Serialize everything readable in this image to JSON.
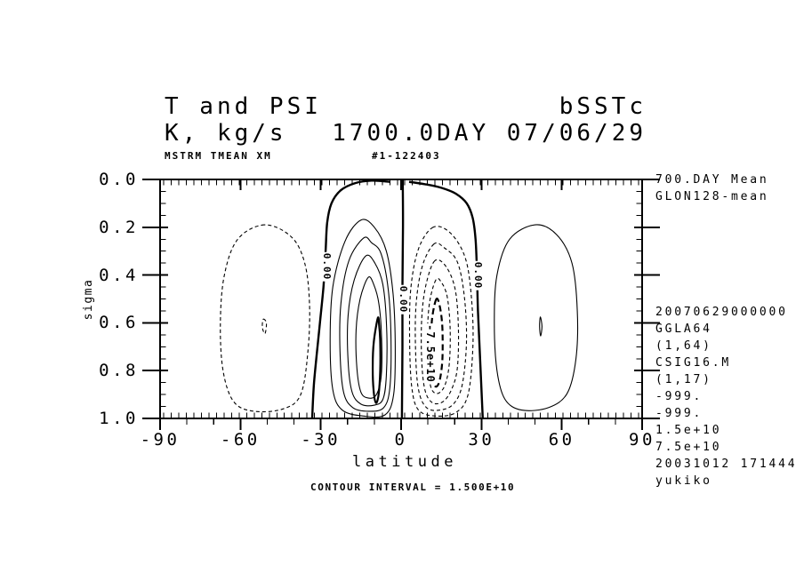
{
  "page": {
    "bg": "#ffffff",
    "fg": "#000000"
  },
  "header": {
    "title_left": "T and PSI",
    "title_right": "bSSTc",
    "subtitle_left": "K, kg/s",
    "subtitle_right": "1700.0DAY 07/06/29",
    "meta_left": "MSTRM TMEAN XM",
    "meta_center": "#1-122403"
  },
  "right_panel": {
    "top_lines": [
      "700.DAY Mean",
      "GLON128-mean"
    ],
    "bottom_lines": [
      "20070629000000",
      "GGLA64",
      "(1,64)",
      "CSIG16.M",
      "(1,17)",
      "-999.",
      "-999.",
      "1.5e+10",
      "7.5e+10",
      "20031012 171444",
      "yukiko"
    ]
  },
  "footnote": "CONTOUR INTERVAL = 1.500E+10",
  "chart_data": {
    "type": "contour",
    "title": "T and PSI  (mass streamfunction, MSTRM TMEAN XM)",
    "xlabel": "latitude",
    "ylabel": "sigma",
    "xlim": [
      -90,
      90
    ],
    "ylim_top_to_bottom": [
      0.0,
      1.0
    ],
    "x_ticks_major": [
      -90,
      -60,
      -30,
      0,
      30,
      60,
      90
    ],
    "x_tick_labels": [
      "-90",
      "-60",
      "-30",
      "0",
      "30",
      "60",
      "90"
    ],
    "x_minor_tick_step": 10,
    "x_grid_tick_count": 64,
    "y_ticks_major": [
      0.0,
      0.2,
      0.4,
      0.6,
      0.8,
      1.0
    ],
    "y_tick_labels": [
      "0.0",
      "0.2",
      "0.4",
      "0.6",
      "0.8",
      "1.0"
    ],
    "y_minor_tick_step": 0.05,
    "grid": false,
    "contour_interval": 15000000000.0,
    "units": "kg/s",
    "labels": [
      {
        "text": "0.00",
        "lat": -27.8,
        "sigma": 0.365,
        "big": false
      },
      {
        "text": "0.00",
        "lat": 0.5,
        "sigma": 0.5,
        "big": false
      },
      {
        "text": "0.00",
        "lat": 28.4,
        "sigma": 0.4,
        "big": false
      },
      {
        "text": "-7.5e+10",
        "lat": 10.9,
        "sigma": 0.73,
        "big": true
      }
    ],
    "contours": [
      {
        "level": 0,
        "style": "solid",
        "bold": true,
        "closed": false,
        "pts": [
          [
            -33.2,
            1.0
          ],
          [
            -32.5,
            0.85
          ],
          [
            -30.5,
            0.62
          ],
          [
            -29.0,
            0.45
          ],
          [
            -28.2,
            0.3
          ],
          [
            -27.6,
            0.18
          ],
          [
            -26.0,
            0.1
          ],
          [
            -22.5,
            0.045
          ],
          [
            -17.0,
            0.015
          ],
          [
            -11.0,
            0.005
          ],
          [
            -4.0,
            0.01
          ]
        ]
      },
      {
        "level": 0,
        "style": "solid",
        "bold": true,
        "closed": false,
        "pts": [
          [
            0.6,
            0.0
          ],
          [
            0.7,
            0.2
          ],
          [
            0.5,
            0.45
          ],
          [
            0.5,
            0.7
          ],
          [
            0.35,
            0.9
          ],
          [
            0.3,
            1.0
          ]
        ]
      },
      {
        "level": 0,
        "style": "solid",
        "bold": true,
        "closed": false,
        "pts": [
          [
            3.0,
            0.01
          ],
          [
            9.0,
            0.02
          ],
          [
            15.0,
            0.035
          ],
          [
            20.5,
            0.06
          ],
          [
            24.5,
            0.1
          ],
          [
            26.7,
            0.16
          ],
          [
            27.8,
            0.25
          ],
          [
            28.3,
            0.38
          ],
          [
            28.7,
            0.55
          ],
          [
            29.5,
            0.75
          ],
          [
            30.5,
            1.0
          ]
        ]
      },
      {
        "level": 15000000000.0,
        "style": "solid",
        "bold": false,
        "closed": true,
        "pts": [
          [
            -15,
            0.17
          ],
          [
            -21,
            0.26
          ],
          [
            -25.5,
            0.45
          ],
          [
            -26.5,
            0.68
          ],
          [
            -25.5,
            0.88
          ],
          [
            -22,
            0.965
          ],
          [
            -14,
            0.99
          ],
          [
            -6,
            0.985
          ],
          [
            -2.8,
            0.9
          ],
          [
            -2.2,
            0.7
          ],
          [
            -3.0,
            0.48
          ],
          [
            -5.5,
            0.3
          ],
          [
            -10,
            0.2
          ]
        ]
      },
      {
        "level": 30000000000.0,
        "style": "solid",
        "bold": false,
        "closed": true,
        "pts": [
          [
            -14,
            0.245
          ],
          [
            -19.5,
            0.34
          ],
          [
            -22.5,
            0.52
          ],
          [
            -22.8,
            0.72
          ],
          [
            -21.5,
            0.89
          ],
          [
            -18,
            0.955
          ],
          [
            -12,
            0.97
          ],
          [
            -6.5,
            0.955
          ],
          [
            -4.2,
            0.87
          ],
          [
            -3.8,
            0.66
          ],
          [
            -4.8,
            0.46
          ],
          [
            -7.5,
            0.31
          ],
          [
            -11,
            0.265
          ]
        ]
      },
      {
        "level": 45000000000.0,
        "style": "solid",
        "bold": false,
        "closed": true,
        "pts": [
          [
            -13.2,
            0.32
          ],
          [
            -17.5,
            0.42
          ],
          [
            -19.8,
            0.57
          ],
          [
            -19.8,
            0.76
          ],
          [
            -18.3,
            0.89
          ],
          [
            -15,
            0.94
          ],
          [
            -10.2,
            0.945
          ],
          [
            -6.8,
            0.92
          ],
          [
            -5.5,
            0.82
          ],
          [
            -5.4,
            0.62
          ],
          [
            -6.8,
            0.44
          ],
          [
            -9.8,
            0.35
          ]
        ]
      },
      {
        "level": 60000000000.0,
        "style": "solid",
        "bold": false,
        "closed": true,
        "pts": [
          [
            -12.3,
            0.41
          ],
          [
            -15.3,
            0.5
          ],
          [
            -16.8,
            0.63
          ],
          [
            -16.5,
            0.79
          ],
          [
            -15.0,
            0.89
          ],
          [
            -12.2,
            0.915
          ],
          [
            -9.2,
            0.9
          ],
          [
            -7.4,
            0.82
          ],
          [
            -7.3,
            0.66
          ],
          [
            -8.3,
            0.52
          ],
          [
            -10.2,
            0.44
          ]
        ]
      },
      {
        "level": 75000000000.0,
        "style": "solid",
        "bold": true,
        "closed": true,
        "pts": [
          [
            -8.7,
            0.58
          ],
          [
            -10.2,
            0.68
          ],
          [
            -10.6,
            0.78
          ],
          [
            -10.3,
            0.88
          ],
          [
            -9.4,
            0.935
          ],
          [
            -8.4,
            0.9
          ],
          [
            -7.8,
            0.8
          ],
          [
            -7.8,
            0.68
          ],
          [
            -8.2,
            0.61
          ]
        ]
      },
      {
        "level": -15000000000.0,
        "style": "dashed",
        "bold": false,
        "closed": true,
        "pts": [
          [
            12,
            0.2
          ],
          [
            6.5,
            0.29
          ],
          [
            3.6,
            0.46
          ],
          [
            3.2,
            0.68
          ],
          [
            4.0,
            0.87
          ],
          [
            6.5,
            0.965
          ],
          [
            13,
            0.99
          ],
          [
            20.5,
            0.975
          ],
          [
            25,
            0.9
          ],
          [
            26.8,
            0.7
          ],
          [
            26.3,
            0.5
          ],
          [
            24,
            0.33
          ],
          [
            18.5,
            0.225
          ]
        ]
      },
      {
        "level": -30000000000.0,
        "style": "dashed",
        "bold": false,
        "closed": true,
        "pts": [
          [
            12.3,
            0.27
          ],
          [
            8.0,
            0.36
          ],
          [
            5.6,
            0.52
          ],
          [
            5.4,
            0.72
          ],
          [
            6.5,
            0.88
          ],
          [
            9.5,
            0.955
          ],
          [
            14.5,
            0.965
          ],
          [
            19.5,
            0.94
          ],
          [
            22.8,
            0.86
          ],
          [
            24.4,
            0.68
          ],
          [
            23.6,
            0.49
          ],
          [
            21,
            0.345
          ],
          [
            16,
            0.285
          ]
        ]
      },
      {
        "level": -45000000000.0,
        "style": "dashed",
        "bold": false,
        "closed": true,
        "pts": [
          [
            12.6,
            0.34
          ],
          [
            9.3,
            0.44
          ],
          [
            7.7,
            0.58
          ],
          [
            7.7,
            0.76
          ],
          [
            9.0,
            0.885
          ],
          [
            11.8,
            0.935
          ],
          [
            15.6,
            0.93
          ],
          [
            18.8,
            0.88
          ],
          [
            21,
            0.79
          ],
          [
            21.4,
            0.62
          ],
          [
            20.2,
            0.46
          ],
          [
            16.8,
            0.365
          ]
        ]
      },
      {
        "level": -60000000000.0,
        "style": "dashed",
        "bold": false,
        "closed": true,
        "pts": [
          [
            13,
            0.42
          ],
          [
            10.7,
            0.51
          ],
          [
            9.8,
            0.64
          ],
          [
            10.0,
            0.78
          ],
          [
            11.3,
            0.875
          ],
          [
            13.8,
            0.895
          ],
          [
            16.4,
            0.86
          ],
          [
            18.0,
            0.77
          ],
          [
            18.3,
            0.62
          ],
          [
            17.2,
            0.49
          ],
          [
            15.0,
            0.43
          ]
        ]
      },
      {
        "level": -75000000000.0,
        "style": "dashed",
        "bold": true,
        "closed": true,
        "pts": [
          [
            13.2,
            0.5
          ],
          [
            11.6,
            0.58
          ],
          [
            11.1,
            0.7
          ],
          [
            11.5,
            0.81
          ],
          [
            12.7,
            0.865
          ],
          [
            14.3,
            0.845
          ],
          [
            15.4,
            0.755
          ],
          [
            15.4,
            0.62
          ],
          [
            14.5,
            0.535
          ]
        ]
      },
      {
        "level": -15000000000.0,
        "style": "dashed",
        "bold": false,
        "closed": true,
        "pts": [
          [
            -51,
            0.19
          ],
          [
            -61,
            0.25
          ],
          [
            -66,
            0.4
          ],
          [
            -67.5,
            0.6
          ],
          [
            -66.5,
            0.8
          ],
          [
            -62.5,
            0.93
          ],
          [
            -55,
            0.97
          ],
          [
            -44,
            0.96
          ],
          [
            -37.5,
            0.9
          ],
          [
            -34.8,
            0.72
          ],
          [
            -34.2,
            0.52
          ],
          [
            -36,
            0.35
          ],
          [
            -41,
            0.24
          ]
        ]
      },
      {
        "level": -30000000000.0,
        "style": "dashed",
        "bold": false,
        "closed": true,
        "pts": [
          [
            -51.5,
            0.585
          ],
          [
            -50.3,
            0.6
          ],
          [
            -50.8,
            0.645
          ],
          [
            -51.8,
            0.62
          ]
        ]
      },
      {
        "level": 15000000000.0,
        "style": "solid",
        "bold": false,
        "closed": true,
        "pts": [
          [
            50,
            0.19
          ],
          [
            40.5,
            0.25
          ],
          [
            35.8,
            0.4
          ],
          [
            34.8,
            0.6
          ],
          [
            35.8,
            0.8
          ],
          [
            38.8,
            0.92
          ],
          [
            45,
            0.965
          ],
          [
            55,
            0.955
          ],
          [
            62,
            0.895
          ],
          [
            65.3,
            0.75
          ],
          [
            65.8,
            0.55
          ],
          [
            63.8,
            0.35
          ],
          [
            58,
            0.23
          ]
        ]
      },
      {
        "level": 30000000000.0,
        "style": "solid",
        "bold": false,
        "closed": true,
        "pts": [
          [
            52,
            0.575
          ],
          [
            52.6,
            0.615
          ],
          [
            52.1,
            0.655
          ],
          [
            51.7,
            0.615
          ]
        ]
      }
    ]
  }
}
